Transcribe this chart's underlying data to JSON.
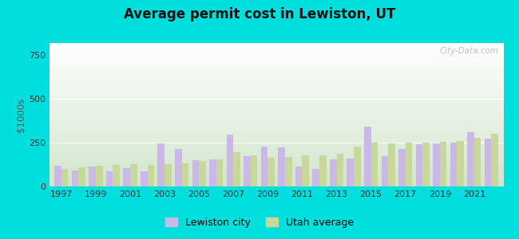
{
  "title": "Average permit cost in Lewiston, UT",
  "ylabel": "$1000s",
  "background_outer": "#00dede",
  "bar_color_city": "#c9b8e8",
  "bar_color_utah": "#c8d89a",
  "legend_city": "Lewiston city",
  "legend_utah": "Utah average",
  "years": [
    1997,
    1998,
    1999,
    2000,
    2001,
    2002,
    2003,
    2004,
    2005,
    2006,
    2007,
    2008,
    2009,
    2010,
    2011,
    2012,
    2013,
    2014,
    2015,
    2016,
    2017,
    2018,
    2019,
    2020,
    2021,
    2022
  ],
  "city_values": [
    120,
    90,
    115,
    85,
    105,
    88,
    245,
    215,
    150,
    155,
    295,
    175,
    230,
    225,
    115,
    100,
    155,
    158,
    340,
    175,
    215,
    240,
    248,
    250,
    308,
    275
  ],
  "utah_values": [
    100,
    108,
    118,
    125,
    128,
    125,
    128,
    130,
    148,
    155,
    195,
    178,
    165,
    170,
    178,
    178,
    188,
    230,
    250,
    248,
    250,
    252,
    255,
    258,
    278,
    300
  ],
  "yticks": [
    0,
    250,
    500,
    750
  ],
  "ylim": [
    0,
    820
  ],
  "watermark": "City-Data.com"
}
